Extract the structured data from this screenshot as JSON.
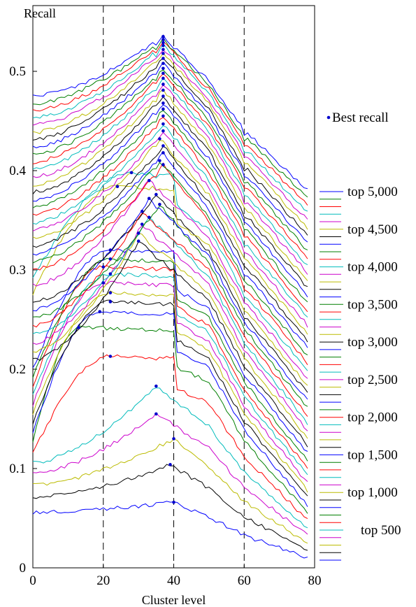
{
  "chart_data": {
    "type": "line",
    "title": "",
    "xlabel": "Cluster level",
    "ylabel": "Recall",
    "xlim": [
      0,
      80
    ],
    "ylim": [
      0,
      0.55
    ],
    "x_ticks": [
      0,
      20,
      40,
      60,
      80
    ],
    "y_ticks": [
      0,
      0.1,
      0.2,
      0.3,
      0.4,
      0.5
    ],
    "x_tick_labels": [
      "0",
      "20",
      "40",
      "60",
      "80"
    ],
    "y_tick_labels": [
      "0",
      "0.1",
      "0.2",
      "0.3",
      "0.4",
      "0.5"
    ],
    "reference_lines_x": [
      20,
      40,
      60
    ],
    "best_recall_label": "Best recall",
    "best_recall_color": "#0000cc",
    "series_colors": [
      "#0000ff",
      "#000000",
      "#bbbb00",
      "#cc00cc",
      "#00bbbb",
      "#ff0000",
      "#007f00"
    ],
    "series_summary": {
      "count": 50,
      "lowest_series": "top 100",
      "highest_series": "top 5,000",
      "step": 100,
      "start_values_at_x0": [
        0.056,
        0.475
      ],
      "end_values_at_x78": [
        0.01,
        0.38
      ]
    },
    "best_recall": [
      {
        "x": 40,
        "y": 0.066
      },
      {
        "x": 39,
        "y": 0.104
      },
      {
        "x": 40,
        "y": 0.13
      },
      {
        "x": 35,
        "y": 0.155
      },
      {
        "x": 35,
        "y": 0.183
      },
      {
        "x": 22,
        "y": 0.213
      },
      {
        "x": 13,
        "y": 0.242
      },
      {
        "x": 19,
        "y": 0.258
      },
      {
        "x": 22,
        "y": 0.268
      },
      {
        "x": 22,
        "y": 0.277
      },
      {
        "x": 20,
        "y": 0.287
      },
      {
        "x": 22,
        "y": 0.296
      },
      {
        "x": 20,
        "y": 0.303
      },
      {
        "x": 22,
        "y": 0.311
      },
      {
        "x": 22,
        "y": 0.32
      },
      {
        "x": 30,
        "y": 0.329
      },
      {
        "x": 30,
        "y": 0.337
      },
      {
        "x": 31,
        "y": 0.346
      },
      {
        "x": 33,
        "y": 0.353
      },
      {
        "x": 31,
        "y": 0.359
      },
      {
        "x": 36,
        "y": 0.366
      },
      {
        "x": 33,
        "y": 0.372
      },
      {
        "x": 35,
        "y": 0.376
      },
      {
        "x": 24,
        "y": 0.384
      },
      {
        "x": 33,
        "y": 0.39
      },
      {
        "x": 28,
        "y": 0.398
      },
      {
        "x": 37,
        "y": 0.406
      },
      {
        "x": 36,
        "y": 0.41
      },
      {
        "x": 37,
        "y": 0.418
      },
      {
        "x": 37,
        "y": 0.425
      },
      {
        "x": 36,
        "y": 0.432
      },
      {
        "x": 37,
        "y": 0.44
      },
      {
        "x": 37,
        "y": 0.447
      },
      {
        "x": 37,
        "y": 0.455
      },
      {
        "x": 37,
        "y": 0.462
      },
      {
        "x": 37,
        "y": 0.468
      },
      {
        "x": 37,
        "y": 0.475
      },
      {
        "x": 37,
        "y": 0.481
      },
      {
        "x": 37,
        "y": 0.487
      },
      {
        "x": 37,
        "y": 0.493
      },
      {
        "x": 37,
        "y": 0.498
      },
      {
        "x": 37,
        "y": 0.503
      },
      {
        "x": 37,
        "y": 0.508
      },
      {
        "x": 37,
        "y": 0.513
      },
      {
        "x": 37,
        "y": 0.518
      },
      {
        "x": 37,
        "y": 0.522
      },
      {
        "x": 37,
        "y": 0.526
      },
      {
        "x": 37,
        "y": 0.529
      },
      {
        "x": 37,
        "y": 0.532
      },
      {
        "x": 37,
        "y": 0.535
      }
    ],
    "legend": {
      "placement": "right",
      "labeled_entries": [
        "top 5,000",
        "top 4,500",
        "top 4,000",
        "top 3,500",
        "top 3,000",
        "top 2,500",
        "top 2,000",
        "top 1,500",
        "top 1,000",
        "top 500"
      ],
      "swatch_count": 50
    }
  }
}
